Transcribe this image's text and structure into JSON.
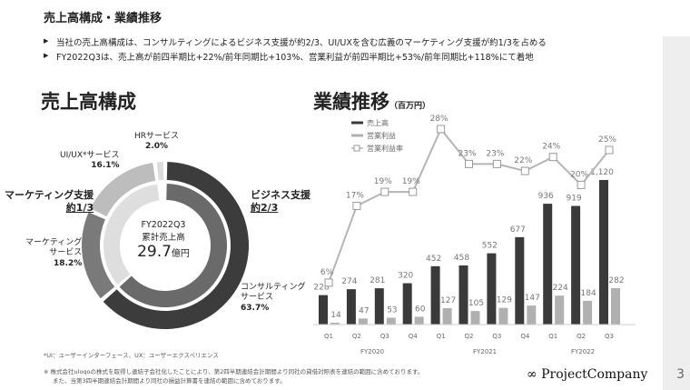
{
  "header": {
    "title": "売上高構成・業績推移"
  },
  "bullets": [
    "当社の売上高構成は、コンサルティングによるビジネス支援が約2/3、UI/UXを含む広義のマーケティング支援が約1/3を占める",
    "FY2022Q3は、売上高が前四半期比+22%/前年同期比+103%、営業利益が前四半期比+53%/前年同期比+118%にて着地"
  ],
  "composition": {
    "title": "売上高構成",
    "center_line1": "FY2022Q3",
    "center_line2": "累計売上高",
    "center_value": "29.7",
    "center_unit": "億円",
    "segments": [
      {
        "name": "コンサルティング",
        "name2": "サービス",
        "pct": 63.7,
        "label": "63.7%",
        "color": "#3c3c3c"
      },
      {
        "name": "マーケティング",
        "name2": "サービス",
        "pct": 18.2,
        "label": "18.2%",
        "color": "#7a7a7a"
      },
      {
        "name": "UI/UX*サービス",
        "pct": 16.1,
        "label": "16.1%",
        "color": "#bdbdbd"
      },
      {
        "name": "HRサービス",
        "pct": 2.0,
        "label": "2.0%",
        "color": "#dcdcdc"
      }
    ],
    "groups": [
      {
        "name": "ビジネス支援",
        "share": "約2/3",
        "color": "#6a6a6a"
      },
      {
        "name": "マーケティング支援",
        "share": "約1/3",
        "color": "#dedede"
      }
    ]
  },
  "chart_data": {
    "type": "bar",
    "title": "業績推移",
    "unit": "（百万円）",
    "categories": [
      "Q1",
      "Q2",
      "Q3",
      "Q4",
      "Q1",
      "Q2",
      "Q3",
      "Q4",
      "Q1",
      "Q2",
      "Q3"
    ],
    "groups": [
      "FY2020",
      "FY2021",
      "FY2022"
    ],
    "series": [
      {
        "name": "売上高",
        "type": "bar",
        "color": "#3a3a3a",
        "values": [
          228,
          274,
          281,
          320,
          452,
          458,
          552,
          677,
          936,
          919,
          1120
        ],
        "labels": [
          "228",
          "274",
          "281",
          "320",
          "452",
          "458",
          "552",
          "677",
          "936",
          "919",
          "1,120"
        ]
      },
      {
        "name": "営業利益",
        "type": "bar",
        "color": "#b0b0b0",
        "values": [
          14,
          47,
          53,
          60,
          127,
          105,
          129,
          147,
          224,
          184,
          282
        ]
      },
      {
        "name": "営業利益率",
        "type": "line",
        "color": "#b5b5b5",
        "values": [
          6,
          17,
          19,
          19,
          28,
          23,
          23,
          22,
          24,
          20,
          25
        ]
      }
    ],
    "ylim": [
      0,
      1120
    ]
  },
  "footnotes": {
    "uiux": "*UI：ユーザーインターフェース、UX：ユーザーエクスペリエンス",
    "note1": "※ 株式会社uloqoの株式を取得し連結子会社化したことにより、第2四半期連結会計期間より同社の貸借対照表を連結の範囲に含めております。",
    "note2": "また、当第3四半期連結会計期間より同社の損益計算書を連結の範囲に含めております。"
  },
  "brand": "∞ ProjectCompany",
  "page": "3"
}
